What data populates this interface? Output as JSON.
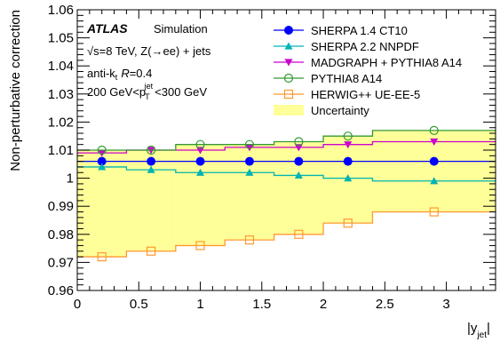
{
  "chart_data": {
    "type": "line",
    "title": "",
    "xlabel": "|y_jet|",
    "ylabel": "Non-perturbative correction",
    "xlim": [
      0,
      3.4
    ],
    "ylim": [
      0.96,
      1.06
    ],
    "grid": false,
    "legend_placement": "top-right",
    "x_ticks": [
      "0",
      "0.5",
      "1",
      "1.5",
      "2",
      "2.5",
      "3"
    ],
    "y_ticks": [
      "0.96",
      "0.97",
      "0.98",
      "0.99",
      "1",
      "1.01",
      "1.02",
      "1.03",
      "1.04",
      "1.05",
      "1.06"
    ],
    "bin_edges": [
      0,
      0.4,
      0.8,
      1.2,
      1.6,
      2.0,
      2.4,
      3.4
    ],
    "x_centers": [
      0.2,
      0.6,
      1.0,
      1.4,
      1.8,
      2.2,
      2.9
    ],
    "annotations": {
      "atlas": "ATLAS",
      "simulation": "Simulation",
      "line2": "√s=8 TeV, Z(→ee) + jets",
      "line3": "anti-kt R=0.4",
      "line4": "200 GeV<pT jet <300 GeV"
    },
    "series": [
      {
        "name": "SHERPA 1.4 CT10",
        "color": "#0000ff",
        "marker": "circle-filled",
        "values": [
          1.006,
          1.006,
          1.006,
          1.006,
          1.006,
          1.006,
          1.006
        ]
      },
      {
        "name": "SHERPA 2.2 NNPDF",
        "color": "#00b3b3",
        "marker": "triangle-filled",
        "values": [
          1.004,
          1.003,
          1.002,
          1.002,
          1.001,
          1.0,
          0.999
        ]
      },
      {
        "name": "MADGRAPH + PYTHIA8 A14",
        "color": "#cc00cc",
        "marker": "triangle-down-filled",
        "values": [
          1.009,
          1.01,
          1.01,
          1.011,
          1.011,
          1.012,
          1.013
        ]
      },
      {
        "name": "PYTHIA8 A14",
        "color": "#339933",
        "marker": "circle-open",
        "values": [
          1.01,
          1.01,
          1.012,
          1.012,
          1.013,
          1.015,
          1.017
        ]
      },
      {
        "name": "HERWIG++ UE-EE-5",
        "color": "#ff9933",
        "marker": "square-open",
        "values": [
          0.972,
          0.974,
          0.976,
          0.978,
          0.98,
          0.984,
          0.988
        ]
      }
    ],
    "uncertainty": {
      "name": "Uncertainty",
      "color": "#ffff99",
      "upper": [
        1.01,
        1.01,
        1.012,
        1.012,
        1.013,
        1.015,
        1.017
      ],
      "lower": [
        0.972,
        0.974,
        0.976,
        0.978,
        0.98,
        0.984,
        0.988
      ]
    }
  }
}
